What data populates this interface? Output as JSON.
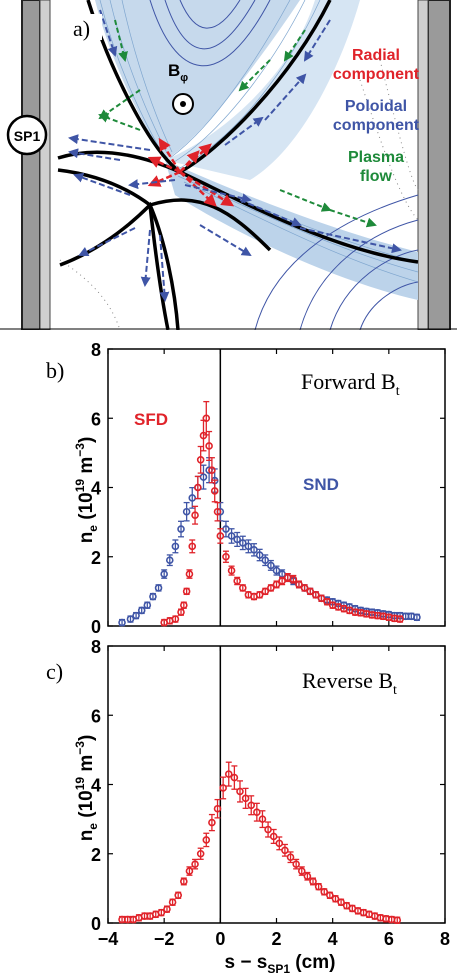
{
  "panel_a": {
    "label": "a)",
    "sp_label": "SP1",
    "bphi_label": "B",
    "bphi_sub": "φ",
    "legend": [
      {
        "text": "Radial",
        "color": "#e0232a"
      },
      {
        "text": "component",
        "color": "#e0232a"
      },
      {
        "text": "Poloidal",
        "color": "#3f55a6"
      },
      {
        "text": "component",
        "color": "#3f55a6"
      },
      {
        "text": "Plasma",
        "color": "#1e8a3a"
      },
      {
        "text": "flow",
        "color": "#1e8a3a"
      }
    ]
  },
  "panel_b": {
    "label": "b)",
    "title": "Forward B",
    "title_sub": "t",
    "series_labels": [
      {
        "text": "SFD",
        "color": "#e0232a"
      },
      {
        "text": "SND",
        "color": "#3f55a6"
      }
    ]
  },
  "panel_c": {
    "label": "c)",
    "title": "Reverse B",
    "title_sub": "t"
  },
  "ylabel": {
    "main": "n",
    "sub": "e",
    "paren_open": " (10",
    "exp1": "19",
    "unit": " m",
    "exp2": "−3",
    "paren_close": ")"
  },
  "xlabel": {
    "main": "s − s",
    "sub": "SP1",
    "unit": " (cm)"
  },
  "chart_data": [
    {
      "type": "scatter",
      "panel": "b",
      "title": "Forward B_t",
      "xlabel": "s − s_SP1 (cm)",
      "ylabel": "n_e (10^19 m^-3)",
      "xlim": [
        -4,
        8
      ],
      "ylim": [
        0,
        8
      ],
      "xticks": [
        "−4",
        "−2",
        "0",
        "2",
        "4",
        "6",
        "8"
      ],
      "yticks": [
        "0",
        "2",
        "4",
        "6",
        "8"
      ],
      "series": [
        {
          "name": "SND",
          "color": "#3f55a6",
          "x": [
            -3.5,
            -3.2,
            -3.0,
            -2.8,
            -2.6,
            -2.4,
            -2.2,
            -2.0,
            -1.8,
            -1.6,
            -1.4,
            -1.2,
            -1.0,
            -0.8,
            -0.6,
            -0.4,
            -0.2,
            0.0,
            0.2,
            0.4,
            0.6,
            0.8,
            1.0,
            1.2,
            1.4,
            1.6,
            1.8,
            2.0,
            2.2,
            2.4,
            2.6,
            2.8,
            3.0,
            3.2,
            3.4,
            3.6,
            3.8,
            4.0,
            4.2,
            4.4,
            4.6,
            4.8,
            5.0,
            5.2,
            5.4,
            5.6,
            5.8,
            6.0,
            6.2,
            6.4,
            6.6,
            6.8,
            7.0
          ],
          "y": [
            0.1,
            0.2,
            0.3,
            0.45,
            0.6,
            0.85,
            1.1,
            1.5,
            1.9,
            2.3,
            2.8,
            3.3,
            3.7,
            4.0,
            4.3,
            4.5,
            4.2,
            3.3,
            2.8,
            2.6,
            2.5,
            2.4,
            2.3,
            2.2,
            2.05,
            1.9,
            1.75,
            1.6,
            1.5,
            1.4,
            1.3,
            1.2,
            1.1,
            1.0,
            0.9,
            0.8,
            0.75,
            0.7,
            0.65,
            0.6,
            0.55,
            0.5,
            0.45,
            0.42,
            0.4,
            0.38,
            0.35,
            0.33,
            0.3,
            0.3,
            0.28,
            0.28,
            0.25
          ]
        },
        {
          "name": "SFD",
          "color": "#e0232a",
          "x": [
            -2.0,
            -1.8,
            -1.6,
            -1.4,
            -1.3,
            -1.2,
            -1.1,
            -1.0,
            -0.9,
            -0.8,
            -0.7,
            -0.6,
            -0.5,
            -0.4,
            -0.3,
            -0.2,
            -0.1,
            0.0,
            0.2,
            0.4,
            0.6,
            0.8,
            1.0,
            1.2,
            1.4,
            1.6,
            1.8,
            2.0,
            2.2,
            2.4,
            2.6,
            2.8,
            3.0,
            3.2,
            3.4,
            3.6,
            3.8,
            4.0,
            4.2,
            4.4,
            4.6,
            4.8,
            5.0,
            5.2,
            5.4,
            5.6,
            5.8,
            6.0,
            6.2,
            6.4
          ],
          "y": [
            0.1,
            0.15,
            0.2,
            0.4,
            0.6,
            1.0,
            1.5,
            2.3,
            3.2,
            4.0,
            4.8,
            5.5,
            6.0,
            5.2,
            4.5,
            3.9,
            3.3,
            2.6,
            2.0,
            1.6,
            1.3,
            1.1,
            0.9,
            0.85,
            0.9,
            1.0,
            1.1,
            1.2,
            1.3,
            1.4,
            1.35,
            1.2,
            1.1,
            1.0,
            0.9,
            0.8,
            0.7,
            0.6,
            0.55,
            0.5,
            0.45,
            0.4,
            0.38,
            0.35,
            0.32,
            0.3,
            0.28,
            0.25,
            0.22,
            0.2
          ]
        }
      ]
    },
    {
      "type": "scatter",
      "panel": "c",
      "title": "Reverse B_t",
      "xlabel": "s − s_SP1 (cm)",
      "ylabel": "n_e (10^19 m^-3)",
      "xlim": [
        -4,
        8
      ],
      "ylim": [
        0,
        8
      ],
      "xticks": [
        "−4",
        "−2",
        "0",
        "2",
        "4",
        "6",
        "8"
      ],
      "yticks": [
        "0",
        "2",
        "4",
        "6",
        "8"
      ],
      "series": [
        {
          "name": "",
          "color": "#e0232a",
          "x": [
            -3.5,
            -3.3,
            -3.1,
            -2.9,
            -2.7,
            -2.5,
            -2.3,
            -2.1,
            -1.9,
            -1.7,
            -1.5,
            -1.3,
            -1.1,
            -0.9,
            -0.7,
            -0.5,
            -0.3,
            -0.1,
            0.1,
            0.3,
            0.5,
            0.7,
            0.9,
            1.1,
            1.3,
            1.5,
            1.7,
            1.9,
            2.1,
            2.3,
            2.5,
            2.7,
            2.9,
            3.1,
            3.3,
            3.5,
            3.7,
            3.9,
            4.1,
            4.3,
            4.5,
            4.7,
            4.9,
            5.1,
            5.3,
            5.5,
            5.7,
            5.9,
            6.1,
            6.3
          ],
          "y": [
            0.1,
            0.1,
            0.1,
            0.15,
            0.2,
            0.2,
            0.25,
            0.3,
            0.4,
            0.6,
            0.8,
            1.2,
            1.5,
            1.7,
            2.0,
            2.4,
            2.9,
            3.3,
            3.9,
            4.3,
            4.2,
            3.8,
            3.6,
            3.4,
            3.2,
            3.0,
            2.7,
            2.5,
            2.3,
            2.1,
            1.9,
            1.7,
            1.5,
            1.35,
            1.2,
            1.05,
            0.9,
            0.8,
            0.7,
            0.6,
            0.5,
            0.42,
            0.35,
            0.3,
            0.25,
            0.2,
            0.15,
            0.12,
            0.1,
            0.08
          ]
        }
      ]
    }
  ]
}
